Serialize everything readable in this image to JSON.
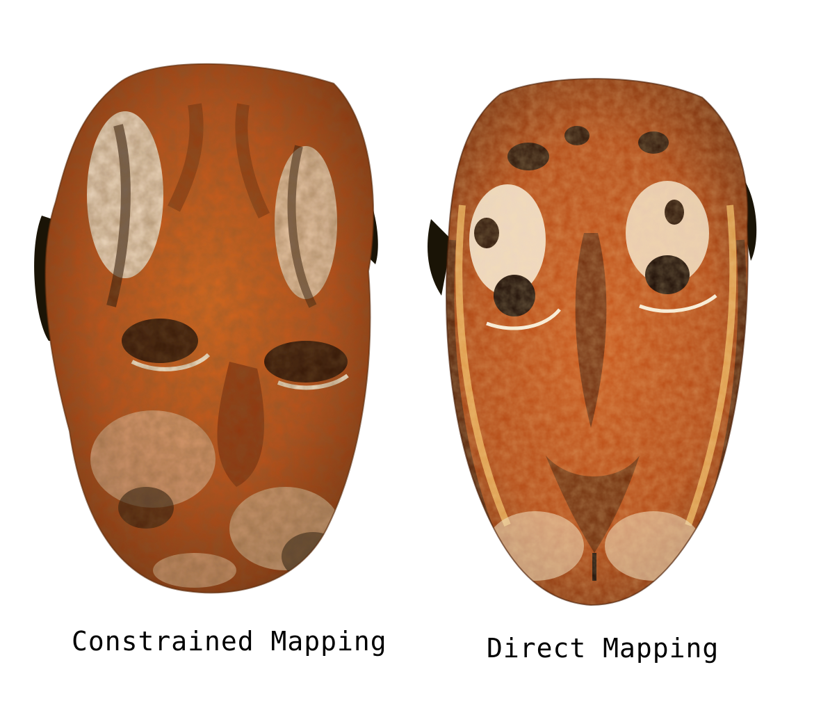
{
  "panels": [
    {
      "caption": "Constrained Mapping",
      "subject": "tiger-face-texture-constrained",
      "colors": {
        "base": "#c2561a",
        "dark": "#3a1a08",
        "light": "#f3e6d2",
        "accent": "#e89a2a"
      }
    },
    {
      "caption": "Direct Mapping",
      "subject": "tiger-face-texture-direct",
      "colors": {
        "base": "#b94d14",
        "dark": "#2b1206",
        "light": "#f7efe2",
        "accent": "#f0a83a"
      }
    }
  ]
}
